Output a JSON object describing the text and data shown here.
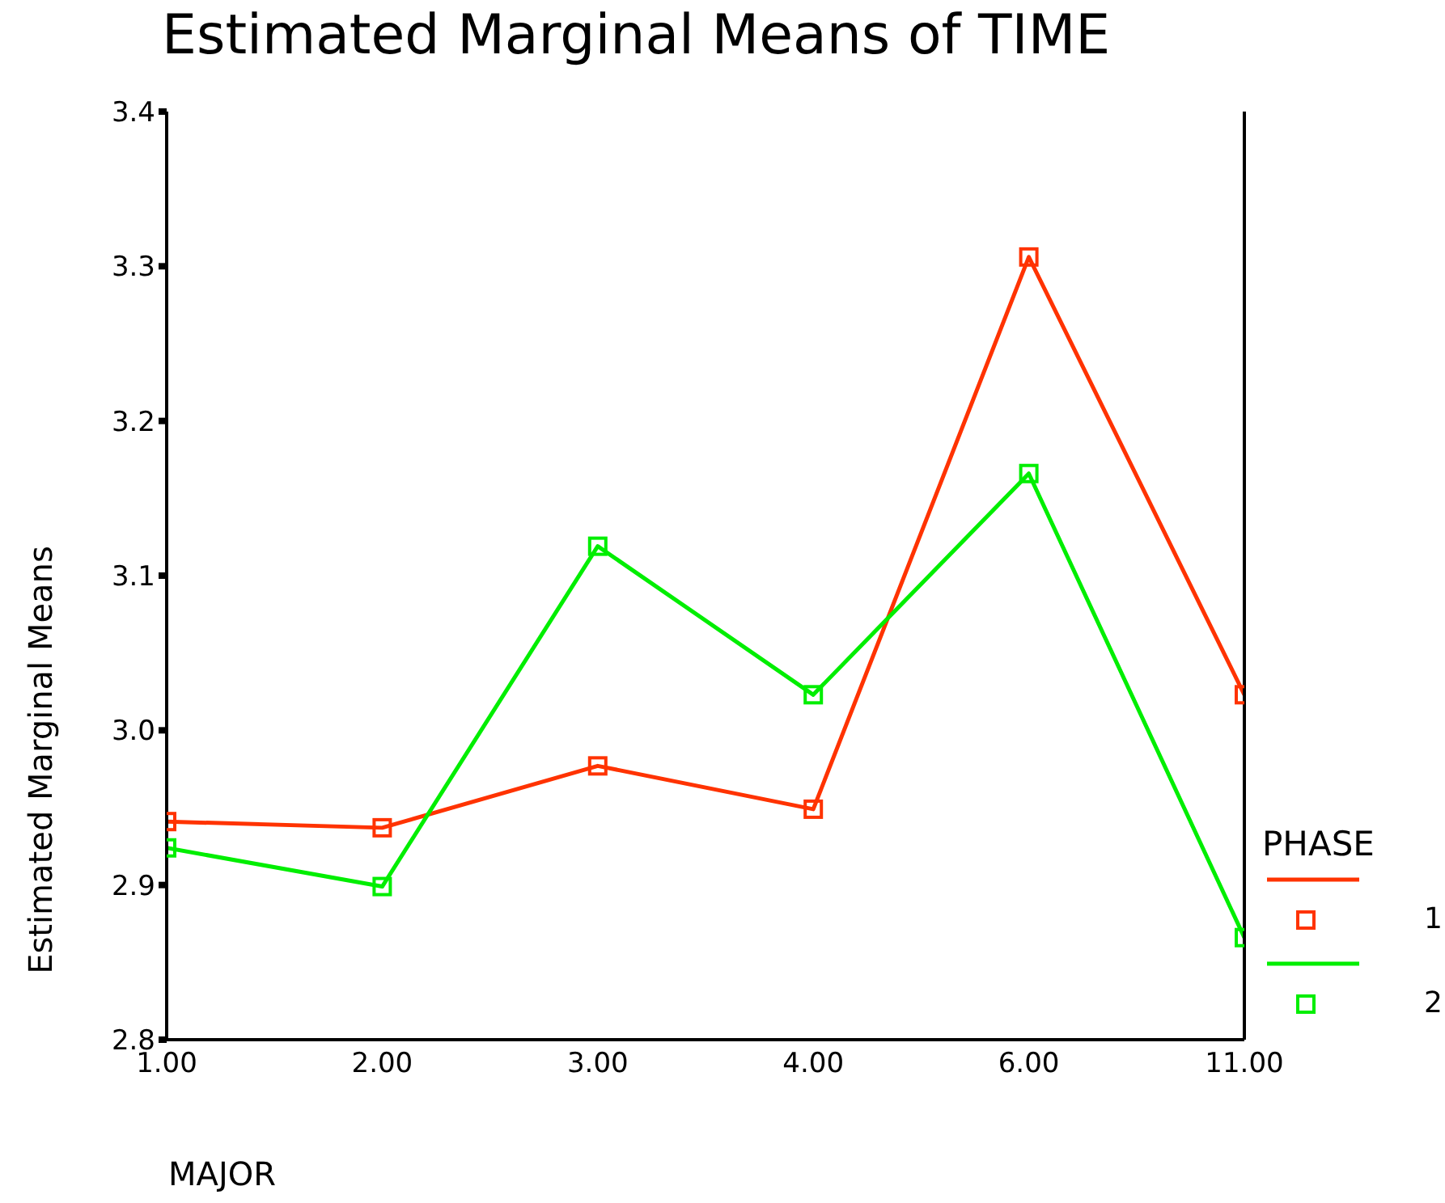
{
  "chart_data": {
    "type": "line",
    "title": "Estimated Marginal Means of TIME",
    "xlabel": "MAJOR",
    "ylabel": "Estimated Marginal Means",
    "legend_title": "PHASE",
    "categories": [
      "1.00",
      "2.00",
      "3.00",
      "4.00",
      "6.00",
      "11.00"
    ],
    "series": [
      {
        "name": "1",
        "color": "#ff3300",
        "values": [
          2.941,
          2.937,
          2.977,
          2.949,
          3.306,
          3.023
        ]
      },
      {
        "name": "2",
        "color": "#00ee00",
        "values": [
          2.924,
          2.899,
          3.119,
          3.023,
          3.166,
          2.866
        ]
      }
    ],
    "ylim": [
      2.8,
      3.4
    ],
    "yticks": [
      {
        "value": 2.8,
        "label": "2.8"
      },
      {
        "value": 2.9,
        "label": "2.9"
      },
      {
        "value": 3,
        "label": "3.0"
      },
      {
        "value": 3.1,
        "label": "3.1"
      },
      {
        "value": 3.2,
        "label": "3.2"
      },
      {
        "value": 3.3,
        "label": "3.3"
      },
      {
        "value": 3.4,
        "label": "3.4"
      }
    ],
    "marker": "square",
    "line_style": "solid",
    "grid": false,
    "legend": "right"
  }
}
